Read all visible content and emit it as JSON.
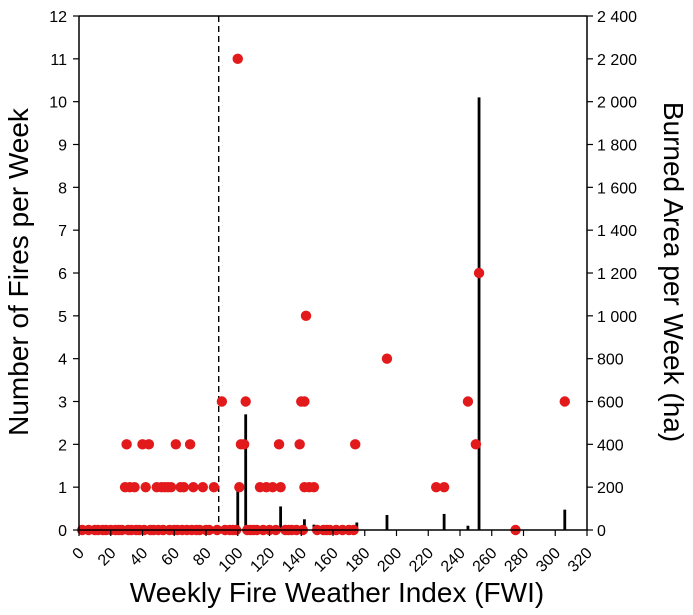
{
  "chart_data": {
    "type": "scatter",
    "title": "",
    "xlabel": "Weekly Fire Weather Index (FWI)",
    "ylabel_left": "Number of Fires per Week",
    "ylabel_right": "Burned Area per Week (ha)",
    "xlim": [
      0,
      320
    ],
    "ylim_left": [
      0,
      12
    ],
    "ylim_right": [
      0,
      2400
    ],
    "x_ticks": [
      "0",
      "20",
      "40",
      "60",
      "80",
      "100",
      "120",
      "140",
      "160",
      "180",
      "200",
      "220",
      "240",
      "260",
      "280",
      "300",
      "320"
    ],
    "y_left_ticks": [
      "0",
      "1",
      "2",
      "3",
      "4",
      "5",
      "6",
      "7",
      "8",
      "9",
      "10",
      "11",
      "12"
    ],
    "y_right_ticks": [
      "0",
      "200",
      "400",
      "600",
      "800",
      "1 000",
      "1 200",
      "1 400",
      "1 600",
      "1 800",
      "2 000",
      "2 200",
      "2 400"
    ],
    "threshold_x": 88,
    "grid": false,
    "colors": {
      "fires": "#e31a1c",
      "burned_area": "#000000",
      "threshold": "#000000"
    },
    "series": [
      {
        "type": "scatter",
        "axis": "left",
        "values": [
          {
            "x": 2,
            "y": 0
          },
          {
            "x": 6,
            "y": 0
          },
          {
            "x": 10,
            "y": 0
          },
          {
            "x": 12,
            "y": 0
          },
          {
            "x": 15,
            "y": 0
          },
          {
            "x": 17,
            "y": 0
          },
          {
            "x": 20,
            "y": 0
          },
          {
            "x": 23,
            "y": 0
          },
          {
            "x": 25,
            "y": 0
          },
          {
            "x": 27,
            "y": 0
          },
          {
            "x": 29,
            "y": 1
          },
          {
            "x": 30,
            "y": 2
          },
          {
            "x": 31,
            "y": 0
          },
          {
            "x": 32,
            "y": 1
          },
          {
            "x": 33,
            "y": 0
          },
          {
            "x": 35,
            "y": 1
          },
          {
            "x": 36,
            "y": 0
          },
          {
            "x": 38,
            "y": 0
          },
          {
            "x": 40,
            "y": 2
          },
          {
            "x": 41,
            "y": 0
          },
          {
            "x": 42,
            "y": 1
          },
          {
            "x": 44,
            "y": 2
          },
          {
            "x": 45,
            "y": 0
          },
          {
            "x": 47,
            "y": 0
          },
          {
            "x": 49,
            "y": 1
          },
          {
            "x": 50,
            "y": 0
          },
          {
            "x": 52,
            "y": 1
          },
          {
            "x": 53,
            "y": 0
          },
          {
            "x": 54,
            "y": 1
          },
          {
            "x": 56,
            "y": 1
          },
          {
            "x": 57,
            "y": 0
          },
          {
            "x": 58,
            "y": 1
          },
          {
            "x": 60,
            "y": 0
          },
          {
            "x": 61,
            "y": 2
          },
          {
            "x": 62,
            "y": 0
          },
          {
            "x": 64,
            "y": 1
          },
          {
            "x": 65,
            "y": 0
          },
          {
            "x": 66,
            "y": 1
          },
          {
            "x": 68,
            "y": 0
          },
          {
            "x": 70,
            "y": 2
          },
          {
            "x": 71,
            "y": 0
          },
          {
            "x": 72,
            "y": 1
          },
          {
            "x": 74,
            "y": 0
          },
          {
            "x": 76,
            "y": 0
          },
          {
            "x": 78,
            "y": 1
          },
          {
            "x": 80,
            "y": 0
          },
          {
            "x": 82,
            "y": 0
          },
          {
            "x": 85,
            "y": 1
          },
          {
            "x": 87,
            "y": 0
          },
          {
            "x": 90,
            "y": 3
          },
          {
            "x": 92,
            "y": 0
          },
          {
            "x": 95,
            "y": 0
          },
          {
            "x": 97,
            "y": 0
          },
          {
            "x": 99,
            "y": 0
          },
          {
            "x": 100,
            "y": 11
          },
          {
            "x": 101,
            "y": 1
          },
          {
            "x": 102,
            "y": 2
          },
          {
            "x": 104,
            "y": 2
          },
          {
            "x": 105,
            "y": 3
          },
          {
            "x": 106,
            "y": 0
          },
          {
            "x": 108,
            "y": 0
          },
          {
            "x": 110,
            "y": 0
          },
          {
            "x": 112,
            "y": 0
          },
          {
            "x": 114,
            "y": 1
          },
          {
            "x": 116,
            "y": 0
          },
          {
            "x": 118,
            "y": 1
          },
          {
            "x": 120,
            "y": 0
          },
          {
            "x": 122,
            "y": 1
          },
          {
            "x": 124,
            "y": 0
          },
          {
            "x": 126,
            "y": 2
          },
          {
            "x": 127,
            "y": 1
          },
          {
            "x": 130,
            "y": 0
          },
          {
            "x": 132,
            "y": 0
          },
          {
            "x": 134,
            "y": 0
          },
          {
            "x": 137,
            "y": 0
          },
          {
            "x": 139,
            "y": 2
          },
          {
            "x": 140,
            "y": 3
          },
          {
            "x": 141,
            "y": 0
          },
          {
            "x": 142,
            "y": 3
          },
          {
            "x": 142,
            "y": 1
          },
          {
            "x": 143,
            "y": 5
          },
          {
            "x": 145,
            "y": 1
          },
          {
            "x": 148,
            "y": 1
          },
          {
            "x": 150,
            "y": 0
          },
          {
            "x": 154,
            "y": 0
          },
          {
            "x": 156,
            "y": 0
          },
          {
            "x": 158,
            "y": 0
          },
          {
            "x": 162,
            "y": 0
          },
          {
            "x": 166,
            "y": 0
          },
          {
            "x": 170,
            "y": 0
          },
          {
            "x": 173,
            "y": 0
          },
          {
            "x": 174,
            "y": 2
          },
          {
            "x": 194,
            "y": 4
          },
          {
            "x": 225,
            "y": 1
          },
          {
            "x": 230,
            "y": 1
          },
          {
            "x": 245,
            "y": 3
          },
          {
            "x": 250,
            "y": 2
          },
          {
            "x": 252,
            "y": 6
          },
          {
            "x": 275,
            "y": 0
          },
          {
            "x": 306,
            "y": 3
          }
        ]
      },
      {
        "type": "bar",
        "axis": "right",
        "values": [
          {
            "x": 100,
            "y": 220
          },
          {
            "x": 105,
            "y": 540
          },
          {
            "x": 127,
            "y": 110
          },
          {
            "x": 142,
            "y": 50
          },
          {
            "x": 148,
            "y": 25
          },
          {
            "x": 175,
            "y": 35
          },
          {
            "x": 194,
            "y": 70
          },
          {
            "x": 230,
            "y": 75
          },
          {
            "x": 245,
            "y": 20
          },
          {
            "x": 252,
            "y": 2020
          },
          {
            "x": 306,
            "y": 95
          }
        ]
      }
    ]
  }
}
